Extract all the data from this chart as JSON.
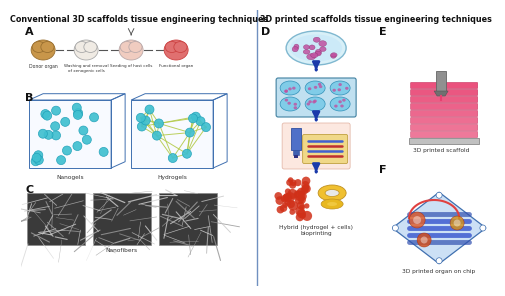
{
  "title_left": "Conventional 3D scaffolds tissue engineering techniques",
  "title_right": "3D printed scaffolds tissue engineering techniques",
  "bg_color": "#ffffff",
  "label_A": "A",
  "label_B": "B",
  "label_C": "C",
  "label_D": "D",
  "label_E": "E",
  "label_F": "F",
  "text_donor": "Donor organ",
  "text_washing": "Washing and removal\nof xenogenic cells",
  "text_seeding": "Seeding of host cells",
  "text_functional": "Functional organ",
  "text_nanogels": "Nanogels",
  "text_hydrogels": "Hydrogels",
  "text_nanofibers": "Nanofibers",
  "text_hybrid": "Hybrid (hydrogel + cells)\nbioprinting",
  "text_3d_scaffold": "3D printed scaffold",
  "text_3d_organ": "3D printed organ on chip",
  "divider_color": "#7090c0",
  "box_color": "#4070b0",
  "arrow_color": "#1a3aaa",
  "nanogel_color": "#40c0d0",
  "nanogel_edge": "#20a0b8",
  "hydrogel_link_color": "#b0c840",
  "scaffold_color": "#e84070",
  "chip_bg": "#c8dff8",
  "chip_border": "#4070b0",
  "title_fontsize": 5.8,
  "label_fontsize": 8,
  "caption_fontsize": 4.2
}
